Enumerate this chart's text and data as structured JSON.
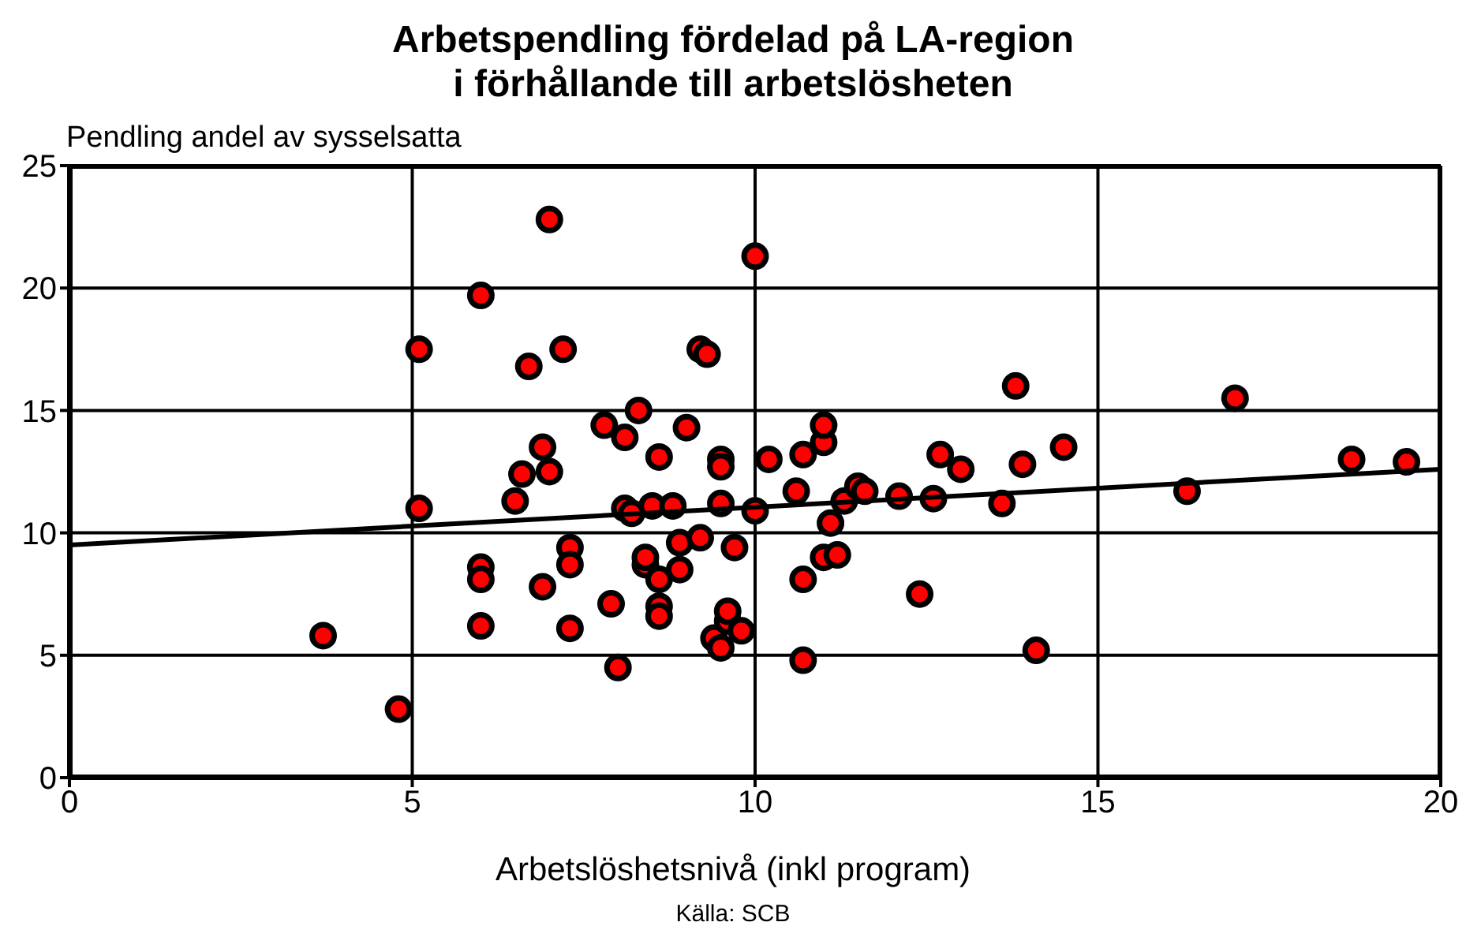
{
  "chart_data": {
    "type": "scatter",
    "title": "Arbetspendling fördelad på LA-region\ni förhållande till arbetslösheten",
    "ylabel": "Pendling andel av sysselsatta",
    "xlabel": "Arbetslöshetsnivå (inkl program)",
    "annotations": [
      "Källa: SCB"
    ],
    "xlim": [
      0,
      20
    ],
    "xticks": [
      0,
      5,
      10,
      15,
      20
    ],
    "ylim": [
      0,
      25
    ],
    "yticks": [
      0,
      5,
      10,
      15,
      20,
      25
    ],
    "grid": true,
    "legend": false,
    "marker": "circle",
    "series": [
      {
        "type": "scatter",
        "color": "#ff0000",
        "x": [
          3.7,
          4.8,
          5.1,
          5.1,
          6.0,
          6.0,
          6.0,
          6.0,
          6.5,
          6.6,
          6.7,
          6.9,
          6.9,
          7.0,
          7.0,
          7.2,
          7.3,
          7.3,
          7.3,
          7.8,
          7.9,
          8.0,
          8.1,
          8.1,
          8.2,
          8.3,
          8.4,
          8.4,
          8.5,
          8.6,
          8.6,
          8.6,
          8.6,
          8.8,
          8.9,
          8.9,
          9.0,
          9.2,
          9.2,
          9.3,
          9.4,
          9.5,
          9.5,
          9.5,
          9.5,
          9.6,
          9.6,
          9.7,
          9.8,
          10.0,
          10.0,
          10.2,
          10.6,
          10.7,
          10.7,
          10.7,
          11.0,
          11.0,
          11.0,
          11.1,
          11.2,
          11.3,
          11.5,
          11.6,
          12.1,
          12.4,
          12.6,
          12.7,
          13.0,
          13.6,
          13.8,
          13.9,
          14.1,
          14.5,
          16.3,
          17.0,
          18.7,
          19.5
        ],
        "values": [
          5.8,
          2.8,
          11.0,
          17.5,
          19.7,
          8.6,
          8.1,
          6.2,
          11.3,
          12.4,
          16.8,
          13.5,
          7.8,
          22.8,
          12.5,
          17.5,
          9.4,
          8.7,
          6.1,
          14.4,
          7.1,
          4.5,
          13.9,
          11.0,
          10.8,
          15.0,
          8.7,
          9.0,
          11.1,
          13.1,
          8.1,
          7.0,
          6.6,
          11.1,
          8.5,
          9.6,
          14.3,
          9.8,
          17.5,
          17.3,
          5.7,
          5.3,
          13.0,
          12.7,
          11.2,
          6.4,
          6.8,
          9.4,
          6.0,
          10.9,
          21.3,
          13.0,
          11.7,
          8.1,
          4.8,
          13.2,
          9.0,
          13.7,
          14.4,
          10.4,
          9.1,
          11.3,
          11.9,
          11.7,
          11.5,
          7.5,
          11.4,
          13.2,
          12.6,
          11.2,
          16.0,
          12.8,
          5.2,
          13.5,
          11.7,
          15.5,
          13.0,
          12.9
        ]
      },
      {
        "type": "line",
        "color": "#000000",
        "marker": "none",
        "x": [
          0,
          20
        ],
        "values": [
          9.5,
          12.6
        ]
      }
    ]
  }
}
